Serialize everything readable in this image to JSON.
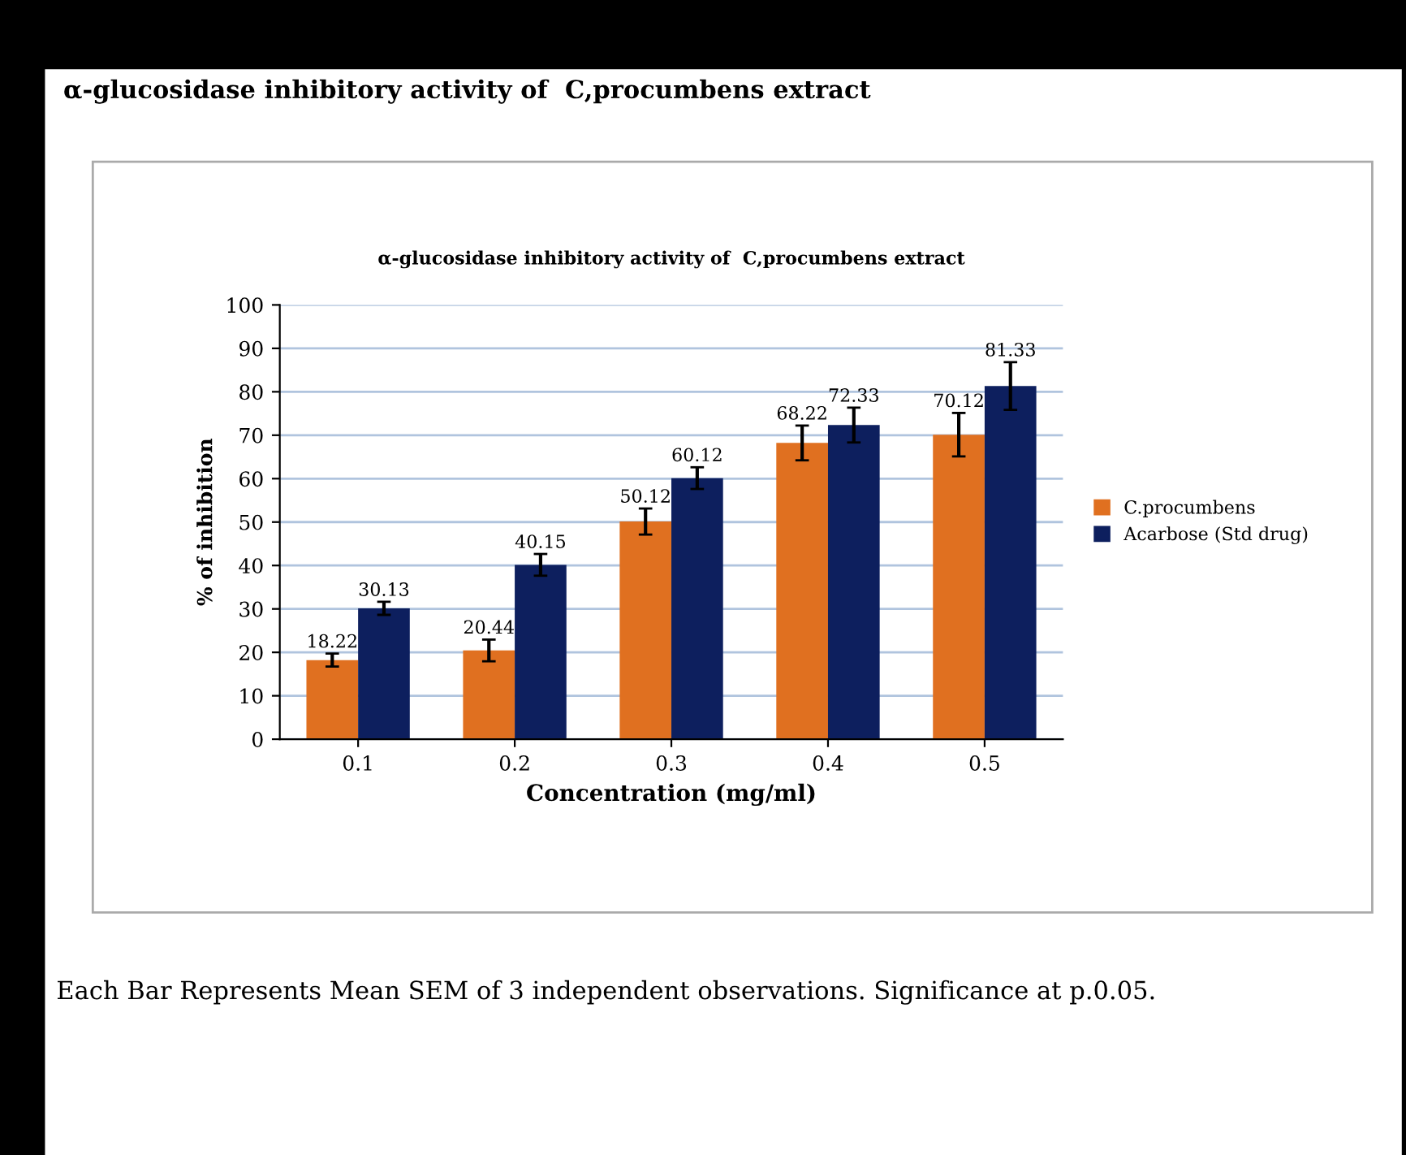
{
  "chart_data": {
    "type": "bar",
    "title": "α-glucosidase inhibitory activity of  C,procumbens extract",
    "subtitle": "α-glucosidase inhibitory activity of  C,procumbens extract",
    "xlabel": "Concentration (mg/ml)",
    "ylabel": "% of inhibition",
    "categories": [
      "0.1",
      "0.2",
      "0.3",
      "0.4",
      "0.5"
    ],
    "series": [
      {
        "name": "C.procumbens",
        "color": "#e07020",
        "values": [
          18.22,
          20.44,
          50.12,
          68.22,
          70.12
        ],
        "errors": [
          1.5,
          2.5,
          3,
          4,
          5
        ],
        "value_labels": [
          "18.22",
          "20.44",
          "50.12",
          "68.22",
          "70.12"
        ]
      },
      {
        "name": "Acarbose (Std drug)",
        "color": "#0d1f5e",
        "values": [
          30.13,
          40.15,
          60.12,
          72.33,
          81.33
        ],
        "errors": [
          1.5,
          2.5,
          2.5,
          4,
          5.5
        ],
        "value_labels": [
          "30.13",
          "40.15",
          "60.12",
          "72.33",
          "81.33"
        ]
      }
    ],
    "ylim": [
      0,
      100
    ],
    "yticks": [
      0,
      10,
      20,
      30,
      40,
      50,
      60,
      70,
      80,
      90,
      100
    ],
    "grid": "y",
    "legend": "right",
    "annotations": [
      "Each Bar Represents Mean SEM of 3 independent observations. Significance at p.0.05."
    ]
  }
}
